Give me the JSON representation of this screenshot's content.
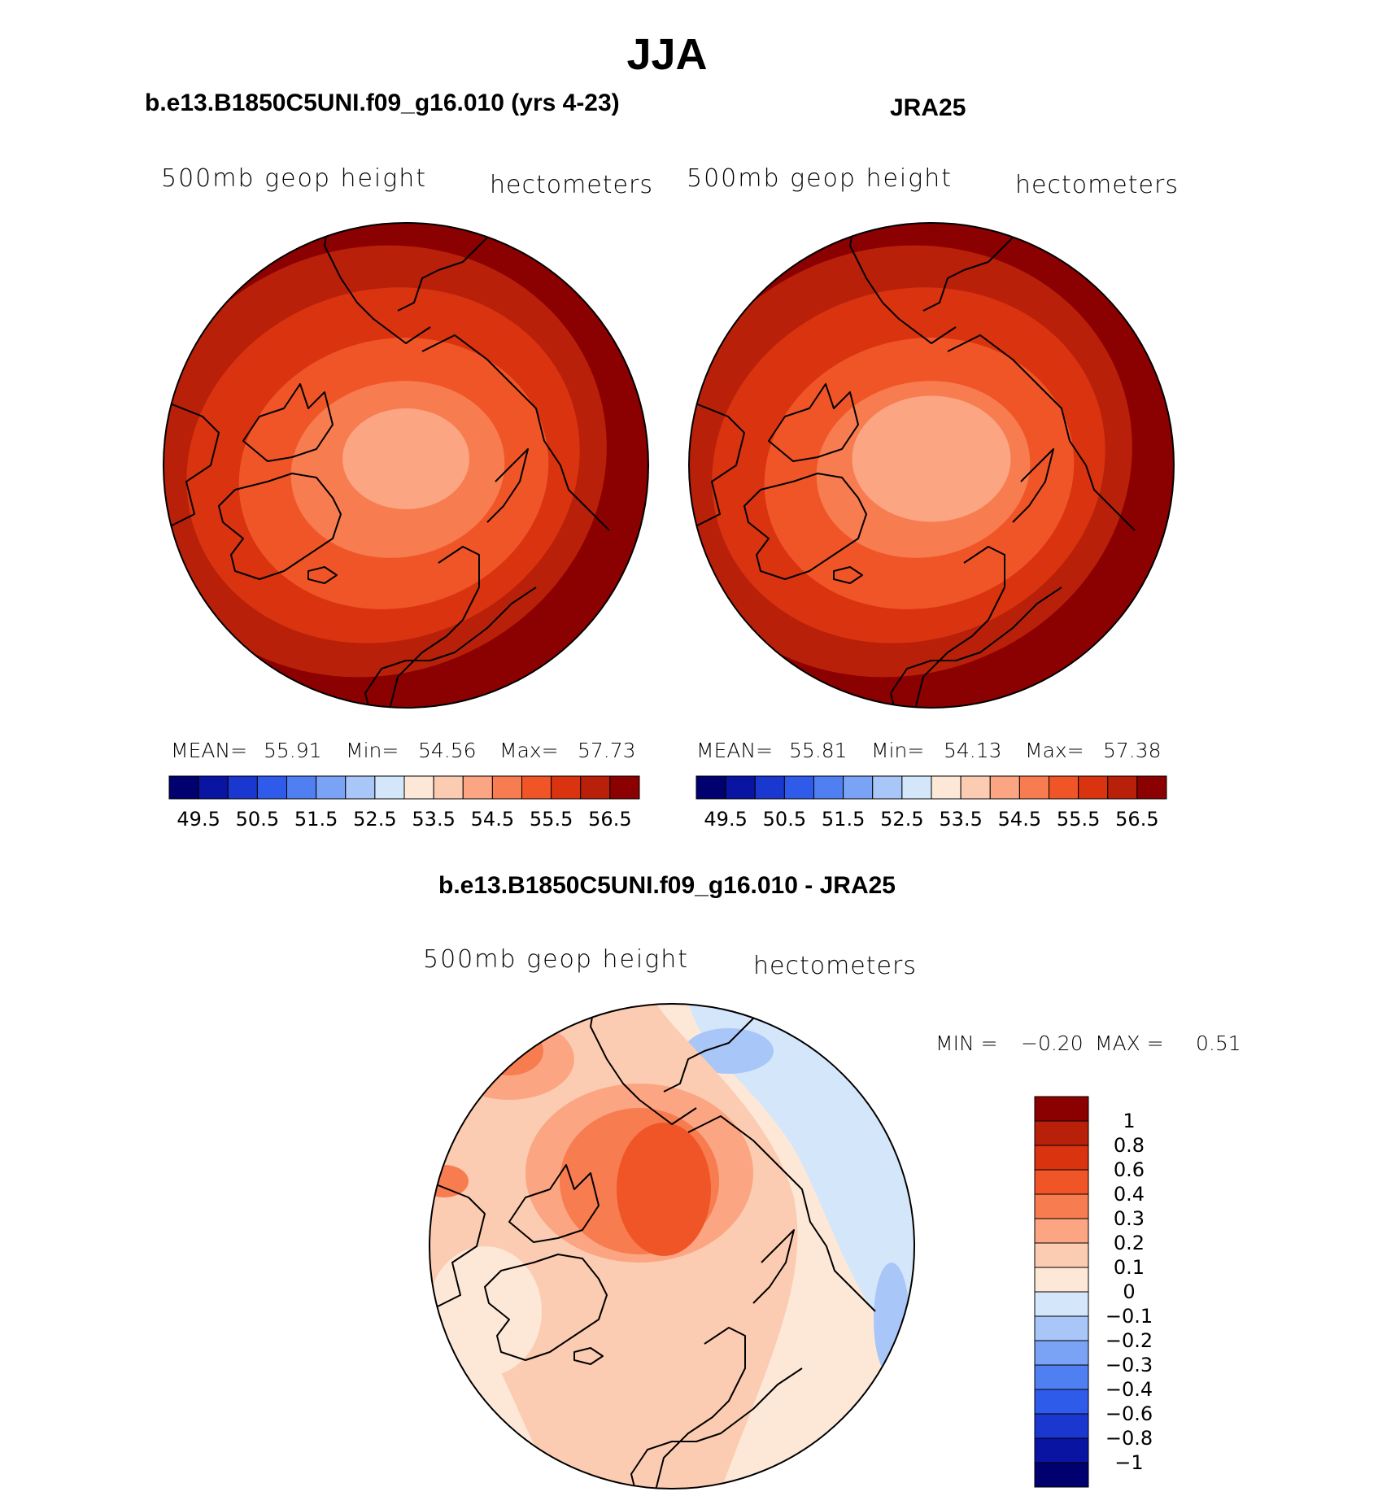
{
  "title": "JJA",
  "panels": [
    {
      "subtitle": "b.e13.B1850C5UNI.f09_g16.010 (yrs 4-23)",
      "variable_label": "500mb geop height",
      "units": "hectometers",
      "stats": {
        "mean_label": "MEAN=",
        "mean": "55.91",
        "min_label": "Min=",
        "min": "54.56",
        "max_label": "Max=",
        "max": "57.73"
      }
    },
    {
      "subtitle": "JRA25",
      "variable_label": "500mb geop height",
      "units": "hectometers",
      "stats": {
        "mean_label": "MEAN=",
        "mean": "55.81",
        "min_label": "Min=",
        "min": "54.13",
        "max_label": "Max=",
        "max": "57.38"
      }
    },
    {
      "subtitle": "b.e13.B1850C5UNI.f09_g16.010 - JRA25",
      "variable_label": "500mb geop height",
      "units": "hectometers",
      "stats": {
        "min_label": "MIN =",
        "min": "−0.20",
        "max_label": "MAX =",
        "max": "0.51"
      }
    }
  ],
  "chart_data": [
    {
      "type": "contour_map",
      "projection": "north-polar-stereographic",
      "title": "b.e13.B1850C5UNI.f09_g16.010 (yrs 4-23)",
      "variable": "500mb geop height",
      "units": "hectometers",
      "mean": 55.91,
      "min": 54.56,
      "max": 57.73,
      "contour_levels": [
        49.5,
        50,
        50.5,
        51,
        51.5,
        52,
        52.5,
        53,
        53.5,
        54,
        54.5,
        55,
        55.5,
        56,
        56.5
      ],
      "colorbar_ticks": [
        "49.5",
        "50.5",
        "51.5",
        "52.5",
        "53.5",
        "54.5",
        "55.5",
        "56.5"
      ],
      "field_pattern": "lowest over the pole (~54.5), increasing toward mid-latitudes (~57.5)"
    },
    {
      "type": "contour_map",
      "projection": "north-polar-stereographic",
      "title": "JRA25",
      "variable": "500mb geop height",
      "units": "hectometers",
      "mean": 55.81,
      "min": 54.13,
      "max": 57.38,
      "contour_levels": [
        49.5,
        50,
        50.5,
        51,
        51.5,
        52,
        52.5,
        53,
        53.5,
        54,
        54.5,
        55,
        55.5,
        56,
        56.5
      ],
      "colorbar_ticks": [
        "49.5",
        "50.5",
        "51.5",
        "52.5",
        "53.5",
        "54.5",
        "55.5",
        "56.5"
      ],
      "field_pattern": "lowest over the pole (~54.1), increasing toward mid-latitudes (~57.4)"
    },
    {
      "type": "contour_map",
      "projection": "north-polar-stereographic",
      "title": "b.e13.B1850C5UNI.f09_g16.010 - JRA25",
      "variable": "500mb geop height",
      "units": "hectometers",
      "min": -0.2,
      "max": 0.51,
      "contour_levels": [
        -1,
        -0.8,
        -0.6,
        -0.4,
        -0.3,
        -0.2,
        -0.1,
        0,
        0.1,
        0.2,
        0.3,
        0.4,
        0.6,
        0.8,
        1
      ],
      "colorbar_ticks": [
        "1",
        "0.8",
        "0.6",
        "0.4",
        "0.3",
        "0.2",
        "0.1",
        "0",
        "−0.1",
        "−0.2",
        "−0.3",
        "−0.4",
        "−0.6",
        "−0.8",
        "−1"
      ],
      "field_pattern": "positive differences over the pole (~0.4-0.5), small negatives over the North Pacific/Asia (~-0.2)"
    }
  ],
  "colors": {
    "seq_16": [
      "#00006e",
      "#0a14a3",
      "#1a38cf",
      "#2f5bea",
      "#4f7ff0",
      "#7aa2f5",
      "#a8c6f7",
      "#d4e6fa",
      "#fde8d8",
      "#fcccb2",
      "#fba582",
      "#f77c50",
      "#f05527",
      "#d9330f",
      "#b8200a",
      "#8b0000"
    ],
    "diff_16": [
      "#8b0000",
      "#b8200a",
      "#d9330f",
      "#f05527",
      "#f77c50",
      "#fba582",
      "#fcccb2",
      "#fde8d8",
      "#d4e6fa",
      "#a8c6f7",
      "#7aa2f5",
      "#4f7ff0",
      "#2f5bea",
      "#1a38cf",
      "#0a14a3",
      "#00006e"
    ],
    "coast": "#000000"
  }
}
